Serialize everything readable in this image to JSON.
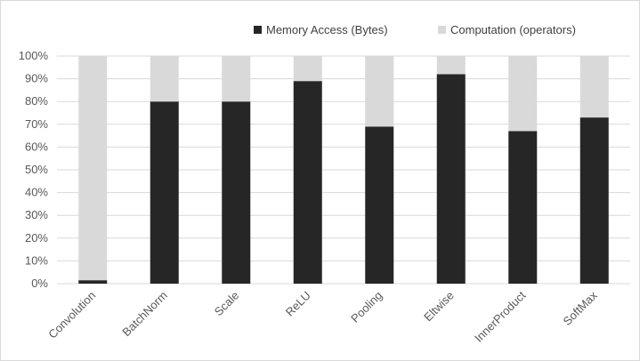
{
  "chart_data": {
    "type": "bar",
    "stacked": true,
    "percent_stacked": true,
    "categories": [
      "Convolution",
      "BatchNorm",
      "Scale",
      "ReLU",
      "Pooling",
      "Eltwise",
      "InnerProduct",
      "SoftMax"
    ],
    "series": [
      {
        "name": "Memory Access (Bytes)",
        "color": "#262626",
        "values": [
          1.5,
          80,
          80,
          89,
          69,
          92,
          67,
          73
        ]
      },
      {
        "name": "Computation (operators)",
        "color": "#d9d9d9",
        "values": [
          98.5,
          20,
          20,
          11,
          31,
          8,
          33,
          27
        ]
      }
    ],
    "ylim": [
      0,
      100
    ],
    "yticks": [
      "0%",
      "10%",
      "20%",
      "30%",
      "40%",
      "50%",
      "60%",
      "70%",
      "80%",
      "90%",
      "100%"
    ],
    "grid": true,
    "legend_position": "top-right",
    "title": "",
    "xlabel": "",
    "ylabel": ""
  }
}
